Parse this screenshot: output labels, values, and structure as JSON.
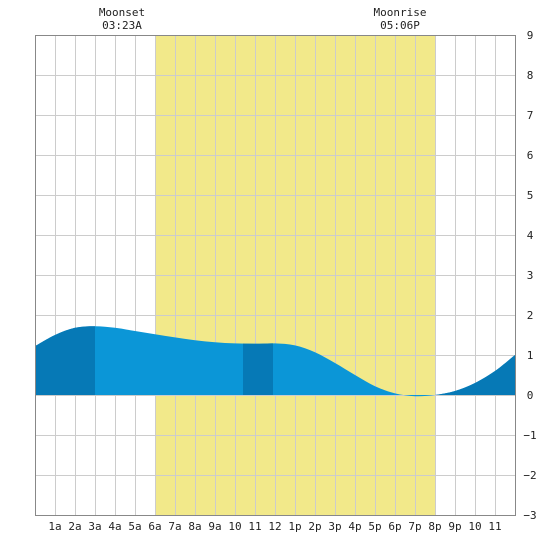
{
  "moon_events": [
    {
      "label": "Moonset",
      "time": "03:23A",
      "hour": 3.383
    },
    {
      "label": "Moonrise",
      "time": "05:06P",
      "hour": 17.1
    }
  ],
  "chart_data": {
    "type": "area",
    "title": "",
    "xlabel": "",
    "ylabel": "",
    "xlim": [
      0,
      24
    ],
    "ylim": [
      -3,
      9
    ],
    "grid": true,
    "x_tick_labels": [
      "1a",
      "2a",
      "3a",
      "4a",
      "5a",
      "6a",
      "7a",
      "8a",
      "9a",
      "10",
      "11",
      "12",
      "1p",
      "2p",
      "3p",
      "4p",
      "5p",
      "6p",
      "7p",
      "8p",
      "9p",
      "10",
      "11"
    ],
    "y_ticks": [
      -3,
      -2,
      -1,
      0,
      1,
      2,
      3,
      4,
      5,
      6,
      7,
      8,
      9
    ],
    "daylight": {
      "start_hour": 6.0,
      "end_hour": 20.0
    },
    "colors": {
      "daylight": "#f2e98a",
      "tide_fill": "#0b96d7",
      "tide_fill_dark": "#0679b6",
      "grid": "#cccccc"
    },
    "dark_bands": [
      {
        "start_hour": 0.0,
        "end_hour": 3.0
      },
      {
        "start_hour": 10.4,
        "end_hour": 11.9
      },
      {
        "start_hour": 20.0,
        "end_hour": 24.0
      }
    ],
    "series": [
      {
        "x": [
          0,
          1,
          2,
          3,
          4,
          5,
          6,
          7,
          8,
          9,
          10,
          11,
          12,
          13,
          14,
          15,
          16,
          17,
          18,
          19,
          20,
          21,
          22,
          23,
          24
        ],
        "values": [
          1.22,
          1.5,
          1.68,
          1.72,
          1.68,
          1.6,
          1.52,
          1.44,
          1.37,
          1.32,
          1.29,
          1.28,
          1.29,
          1.24,
          1.07,
          0.8,
          0.5,
          0.22,
          0.04,
          -0.03,
          0.0,
          0.1,
          0.3,
          0.6,
          1.0
        ]
      }
    ]
  }
}
